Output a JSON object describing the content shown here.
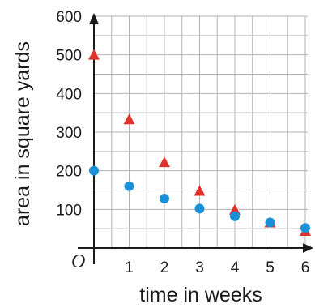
{
  "chart_data": {
    "type": "scatter",
    "title": "",
    "xlabel": "time in weeks",
    "ylabel": "area in square yards",
    "origin_label": "O",
    "xlim": [
      0,
      6
    ],
    "ylim": [
      0,
      600
    ],
    "x_ticks": [
      1,
      2,
      3,
      4,
      5,
      6
    ],
    "y_ticks": [
      100,
      200,
      300,
      400,
      500,
      600
    ],
    "grid": true,
    "series": [
      {
        "marker": "triangle",
        "color": "#e0302a",
        "x": [
          0,
          1,
          2,
          3,
          4,
          5,
          6
        ],
        "y": [
          500,
          333,
          222,
          148,
          99,
          66,
          44
        ]
      },
      {
        "marker": "circle",
        "color": "#1a90d9",
        "x": [
          0,
          1,
          2,
          3,
          4,
          5,
          6
        ],
        "y": [
          200,
          160,
          128,
          102,
          82,
          66,
          52
        ]
      }
    ]
  }
}
